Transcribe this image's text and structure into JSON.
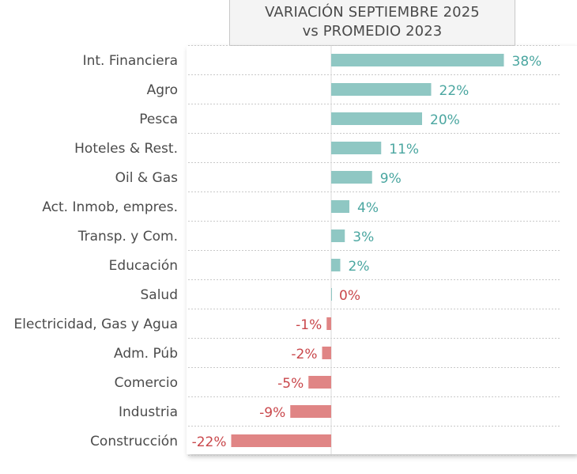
{
  "title": {
    "line1": "VARIACIÓN SEPTIEMBRE 2025",
    "line2": "vs PROMEDIO 2023"
  },
  "colors": {
    "positive": "#8fc7c3",
    "negative": "#e08585",
    "positive_text": "#4aa6a0",
    "negative_text": "#c9474b"
  },
  "chart_data": {
    "type": "bar",
    "orientation": "horizontal",
    "title": "VARIACIÓN SEPTIEMBRE 2025 vs PROMEDIO 2023",
    "categories": [
      "Int. Financiera",
      "Agro",
      "Pesca",
      "Hoteles & Rest.",
      "Oil & Gas",
      "Act. Inmob, empres.",
      "Transp. y Com.",
      "Educación",
      "Salud",
      "Electricidad, Gas y Agua",
      "Adm. Púb",
      "Comercio",
      "Industria",
      "Construcción"
    ],
    "values": [
      38,
      22,
      20,
      11,
      9,
      4,
      3,
      2,
      0,
      -1,
      -2,
      -5,
      -9,
      -22
    ],
    "value_labels": [
      "38%",
      "22%",
      "20%",
      "11%",
      "9%",
      "4%",
      "3%",
      "2%",
      "0%",
      "-1%",
      "-2%",
      "-5%",
      "-9%",
      "-22%"
    ],
    "xlim": [
      -22,
      40
    ],
    "grid": true,
    "legend": "none"
  }
}
